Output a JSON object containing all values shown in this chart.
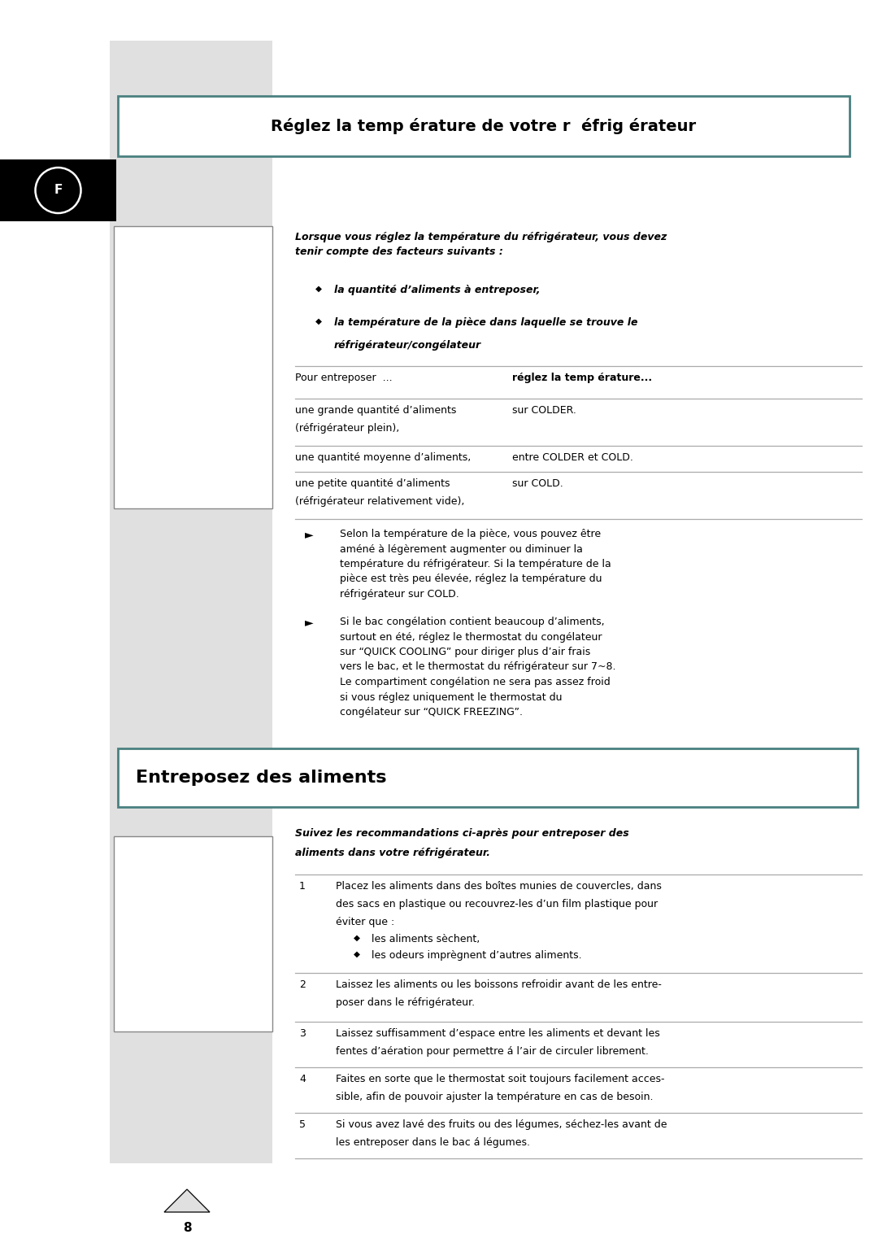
{
  "page_bg": "#ffffff",
  "left_panel_bg": "#e0e0e0",
  "title1": "Réglez la temp érature de votre r  éfrig érateur",
  "intro_italic": "Lorsque vous réglez la température du réfrigérateur, vous devez\ntenir compte des facteurs suivants :",
  "bullet1": "la quantité d’aliments à entreposer,",
  "bullet2_l1": "la température de la pièce dans laquelle se trouve le",
  "bullet2_l2": "réfrigérateur/congélateur",
  "table_header_left": "Pour entreposer  ...",
  "table_header_right": "réglez la temp érature...",
  "table_row1_left_l1": "une grande quantité d’aliments",
  "table_row1_left_l2": "(réfrigérateur plein),",
  "table_row1_right": "sur COLDER.",
  "table_row2_left": "une quantité moyenne d’aliments,",
  "table_row2_right": "entre COLDER et COLD.",
  "table_row3_left_l1": "une petite quantité d’aliments",
  "table_row3_left_l2": "(réfrigérateur relativement vide),",
  "table_row3_right": "sur COLD.",
  "note1": "Selon la température de la pièce, vous pouvez être\naméné à légèrement augmenter ou diminuer la\ntempérature du réfrigérateur. Si la température de la\npièce est très peu élevée, réglez la température du\nréfrigérateur sur COLD.",
  "note2": "Si le bac congélation contient beaucoup d’aliments,\nsurtout en été, réglez le thermostat du congélateur\nsur “QUICK COOLING” pour diriger plus d’air frais\nvers le bac, et le thermostat du réfrigérateur sur 7~8.\nLe compartiment congélation ne sera pas assez froid\nsi vous réglez uniquement le thermostat du\ncongélateur sur “QUICK FREEZING”.",
  "title2": "Entreposez des aliments",
  "intro2_l1": "Suivez les recommandations ci-après pour entreposer des",
  "intro2_l2": "aliments dans votre réfrigérateur.",
  "item1_l1": "Placez les aliments dans des boîtes munies de couvercles, dans",
  "item1_l2": "des sacs en plastique ou recouvrez-les d’un film plastique pour",
  "item1_l3": "éviter que :",
  "item1_b1": "les aliments sèchent,",
  "item1_b2": "les odeurs imprègnent d’autres aliments.",
  "item2_l1": "Laissez les aliments ou les boissons refroidir avant de les entre-",
  "item2_l2": "poser dans le réfrigérateur.",
  "item3_l1": "Laissez suffisamment d’espace entre les aliments et devant les",
  "item3_l2": "fentes d’aération pour permettre á l’air de circuler librement.",
  "item4_l1": "Faites en sorte que le thermostat soit toujours facilement acces-",
  "item4_l2": "sible, afin de pouvoir ajuster la température en cas de besoin.",
  "item5_l1": "Si vous avez lavé des fruits ou des légumes, séchez-les avant de",
  "item5_l2": "les entreposer dans le bac á légumes.",
  "page_num": "8",
  "text_color": "#000000",
  "border_color": "#4a8080",
  "line_color": "#aaaaaa",
  "f_label": "F"
}
